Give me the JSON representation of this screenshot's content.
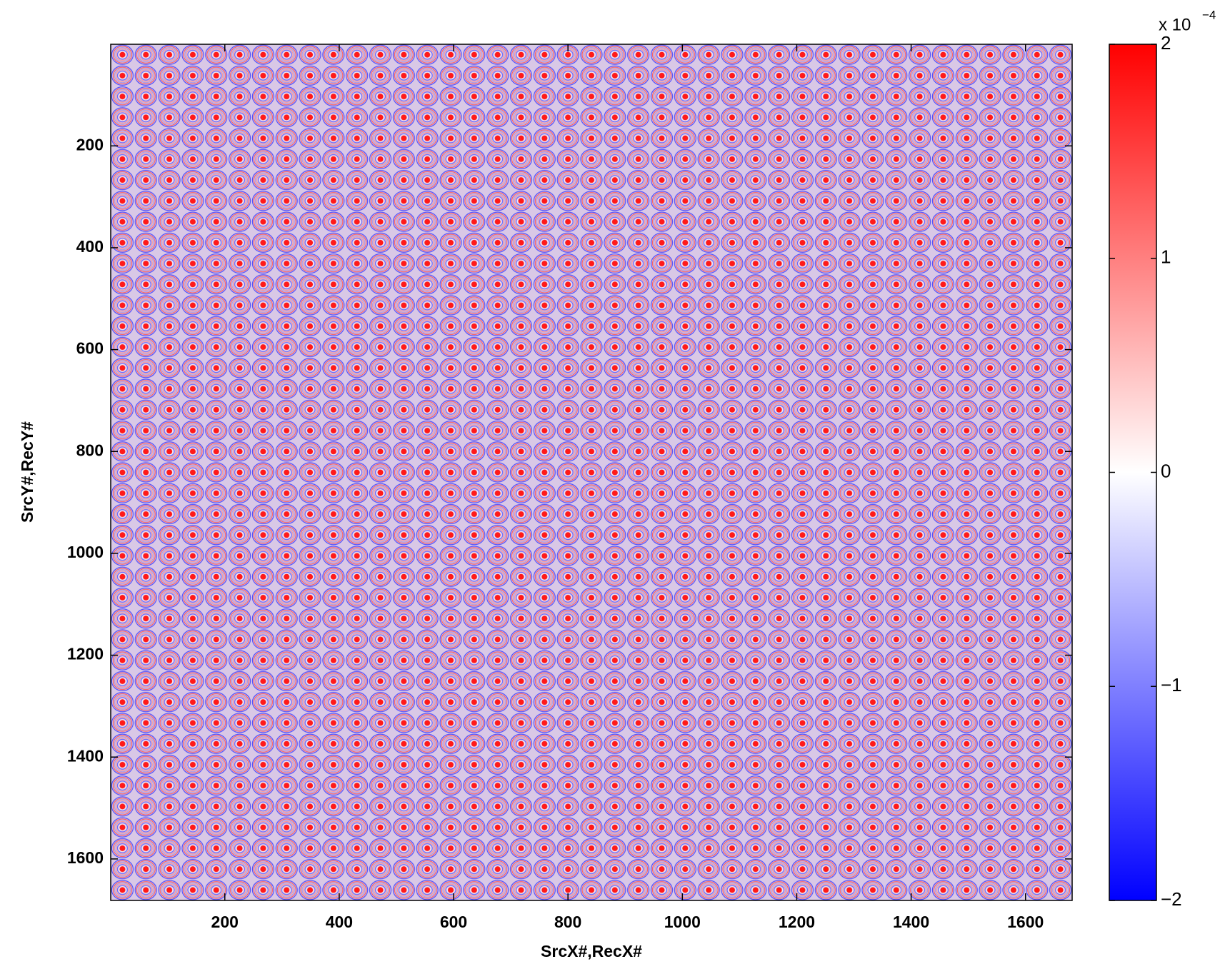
{
  "chart_data": {
    "type": "heatmap",
    "xlabel": "SrcX#,RecX#",
    "ylabel": "SrcY#,RecY#",
    "xlim": [
      0.5,
      1681.5
    ],
    "ylim": [
      1681.5,
      0.5
    ],
    "xticks": [
      200,
      400,
      600,
      800,
      1000,
      1200,
      1400,
      1600
    ],
    "yticks": [
      200,
      400,
      600,
      800,
      1000,
      1200,
      1400,
      1600
    ],
    "colorbar": {
      "clim": [
        -2,
        2
      ],
      "ticks": [
        {
          "value": -2,
          "label": "−2"
        },
        {
          "value": -1,
          "label": "−1"
        },
        0,
        1,
        2
      ],
      "scale_label": "x 10",
      "scale_exponent": "−4",
      "colormap": [
        "#0000ff",
        "#ffffff",
        "#ff0000"
      ]
    }
  }
}
